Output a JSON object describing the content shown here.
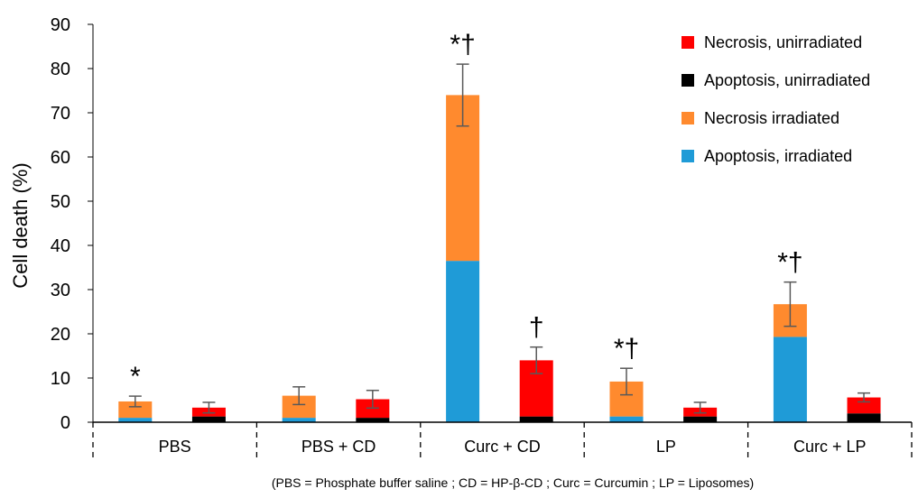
{
  "chart_data": {
    "type": "bar",
    "stacked": true,
    "ylabel": "Cell death (%)",
    "ylim": [
      0,
      90
    ],
    "yticks": [
      0,
      10,
      20,
      30,
      40,
      50,
      60,
      70,
      80,
      90
    ],
    "grid": false,
    "legend_position": "top-right",
    "footnote": "(PBS = Phosphate buffer saline ; CD = HP-β-CD ; Curc = Curcumin ; LP = Liposomes)",
    "groups": [
      "PBS",
      "PBS + CD",
      "Curc + CD",
      "LP",
      "Curc + LP"
    ],
    "legend": [
      {
        "label": "Necrosis, unirradiated",
        "color": "#ff0000"
      },
      {
        "label": "Apoptosis, unirradiated",
        "color": "#000000"
      },
      {
        "label": "Necrosis irradiated",
        "color": "#ff8a2e"
      },
      {
        "label": "Apoptosis, irradiated",
        "color": "#1f9bd7"
      }
    ],
    "bars": [
      {
        "group": "PBS",
        "condition": "irradiated",
        "apoptosis": 1.0,
        "necrosis": 3.7,
        "error": 1.2,
        "marker": "*"
      },
      {
        "group": "PBS",
        "condition": "unirradiated",
        "apoptosis": 1.3,
        "necrosis": 2.0,
        "error": 1.2,
        "marker": ""
      },
      {
        "group": "PBS + CD",
        "condition": "irradiated",
        "apoptosis": 1.0,
        "necrosis": 5.0,
        "error": 2.0,
        "marker": ""
      },
      {
        "group": "PBS + CD",
        "condition": "unirradiated",
        "apoptosis": 1.0,
        "necrosis": 4.2,
        "error": 2.0,
        "marker": ""
      },
      {
        "group": "Curc + CD",
        "condition": "irradiated",
        "apoptosis": 36.5,
        "necrosis": 37.5,
        "error": 7.0,
        "marker": "*†"
      },
      {
        "group": "Curc + CD",
        "condition": "unirradiated",
        "apoptosis": 1.3,
        "necrosis": 12.7,
        "error": 3.0,
        "marker": "†"
      },
      {
        "group": "LP",
        "condition": "irradiated",
        "apoptosis": 1.3,
        "necrosis": 7.9,
        "error": 3.0,
        "marker": "*†"
      },
      {
        "group": "LP",
        "condition": "unirradiated",
        "apoptosis": 1.3,
        "necrosis": 2.0,
        "error": 1.2,
        "marker": ""
      },
      {
        "group": "Curc + LP",
        "condition": "irradiated",
        "apoptosis": 19.3,
        "necrosis": 7.4,
        "error": 5.0,
        "marker": "*†"
      },
      {
        "group": "Curc + LP",
        "condition": "unirradiated",
        "apoptosis": 2.0,
        "necrosis": 3.6,
        "error": 1.0,
        "marker": ""
      }
    ]
  }
}
